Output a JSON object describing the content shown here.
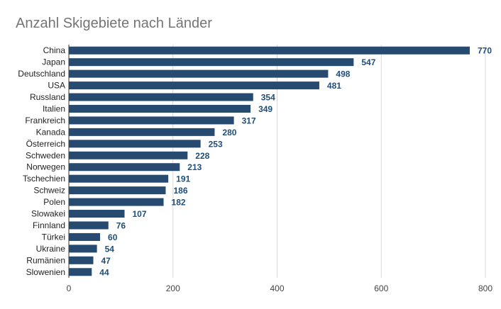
{
  "chart_data": {
    "type": "bar",
    "orientation": "horizontal",
    "title": "Anzahl Skigebiete nach Länder",
    "xlabel": "",
    "ylabel": "",
    "categories": [
      "China",
      "Japan",
      "Deutschland",
      "USA",
      "Russland",
      "Italien",
      "Frankreich",
      "Kanada",
      "Österreich",
      "Schweden",
      "Norwegen",
      "Tschechien",
      "Schweiz",
      "Polen",
      "Slowakei",
      "Finnland",
      "Türkei",
      "Ukraine",
      "Rumänien",
      "Slowenien"
    ],
    "values": [
      770,
      547,
      498,
      481,
      354,
      349,
      317,
      280,
      253,
      228,
      213,
      191,
      186,
      182,
      107,
      76,
      60,
      54,
      47,
      44
    ],
    "xlim": [
      0,
      800
    ],
    "xticks": [
      0,
      200,
      400,
      600,
      800
    ],
    "grid": true,
    "legend": "none",
    "bar_color": "#264a70",
    "label_color": "#1f4e79"
  }
}
